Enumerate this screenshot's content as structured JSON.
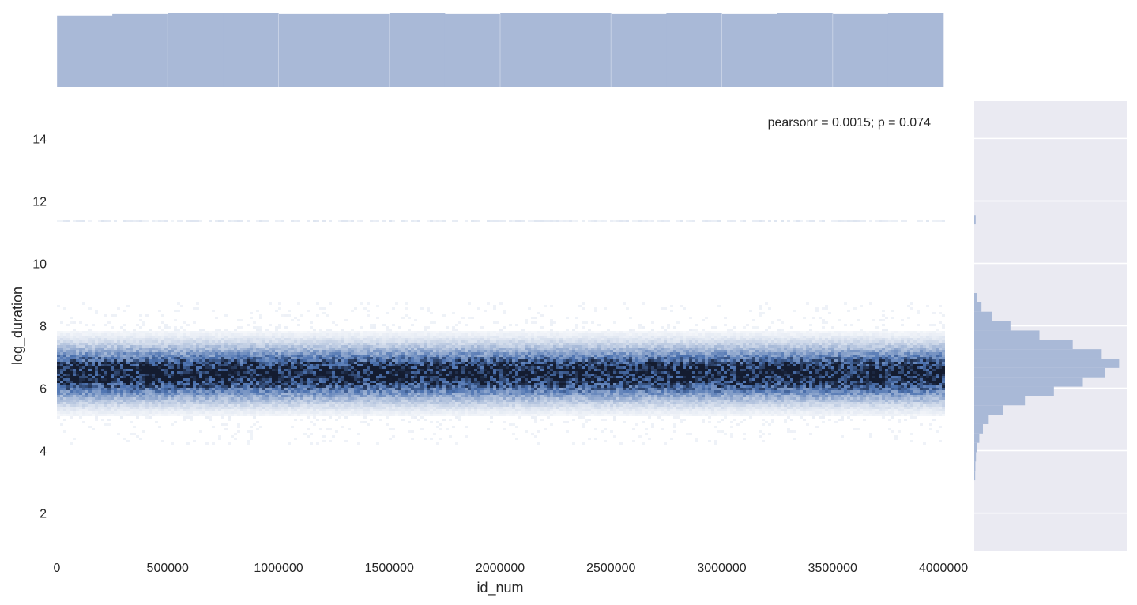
{
  "chart_data": {
    "type": "hexbin-jointplot",
    "main": {
      "xlabel": "id_num",
      "ylabel": "log_duration",
      "xlim": [
        0,
        4000000
      ],
      "ylim": [
        0.8,
        15.2
      ],
      "xticks": [
        "0",
        "500000",
        "1000000",
        "1500000",
        "2000000",
        "2500000",
        "3000000",
        "3500000",
        "4000000"
      ],
      "xtick_values": [
        0,
        500000,
        1000000,
        1500000,
        2000000,
        2500000,
        3000000,
        3500000,
        4000000
      ],
      "yticks": [
        "2",
        "4",
        "6",
        "8",
        "10",
        "12",
        "14"
      ],
      "ytick_values": [
        2,
        4,
        6,
        8,
        10,
        12,
        14
      ],
      "annotation": "pearsonr = 0.0015; p = 0.074",
      "color": "#4c72b0",
      "density_center": 6.5,
      "density_spread": 0.55,
      "secondary_line": 11.4
    },
    "marginal_x": {
      "orientation": "vertical",
      "relative_heights": [
        0.96,
        0.98,
        0.99,
        0.99,
        0.98,
        0.98,
        0.99,
        0.98,
        0.99,
        0.99,
        0.98,
        0.99,
        0.98,
        0.99,
        0.98,
        0.99
      ],
      "xlim": [
        0,
        4000000
      ],
      "color": "#a9b9d7"
    },
    "marginal_y": {
      "orientation": "horizontal",
      "bins": [
        {
          "y": 3.2,
          "count": 0.005
        },
        {
          "y": 3.5,
          "count": 0.008
        },
        {
          "y": 3.8,
          "count": 0.012
        },
        {
          "y": 4.1,
          "count": 0.02
        },
        {
          "y": 4.4,
          "count": 0.035
        },
        {
          "y": 4.7,
          "count": 0.06
        },
        {
          "y": 5.0,
          "count": 0.1
        },
        {
          "y": 5.3,
          "count": 0.2
        },
        {
          "y": 5.6,
          "count": 0.35
        },
        {
          "y": 5.9,
          "count": 0.55
        },
        {
          "y": 6.2,
          "count": 0.75
        },
        {
          "y": 6.5,
          "count": 0.9
        },
        {
          "y": 6.8,
          "count": 1.0
        },
        {
          "y": 7.1,
          "count": 0.88
        },
        {
          "y": 7.4,
          "count": 0.68
        },
        {
          "y": 7.7,
          "count": 0.45
        },
        {
          "y": 8.0,
          "count": 0.25
        },
        {
          "y": 8.3,
          "count": 0.12
        },
        {
          "y": 8.6,
          "count": 0.05
        },
        {
          "y": 8.9,
          "count": 0.02
        },
        {
          "y": 11.4,
          "count": 0.01
        }
      ],
      "yticks": [
        2,
        4,
        6,
        8,
        10,
        12,
        14
      ],
      "color": "#a9b9d7",
      "background": "#eaeaf2"
    }
  }
}
